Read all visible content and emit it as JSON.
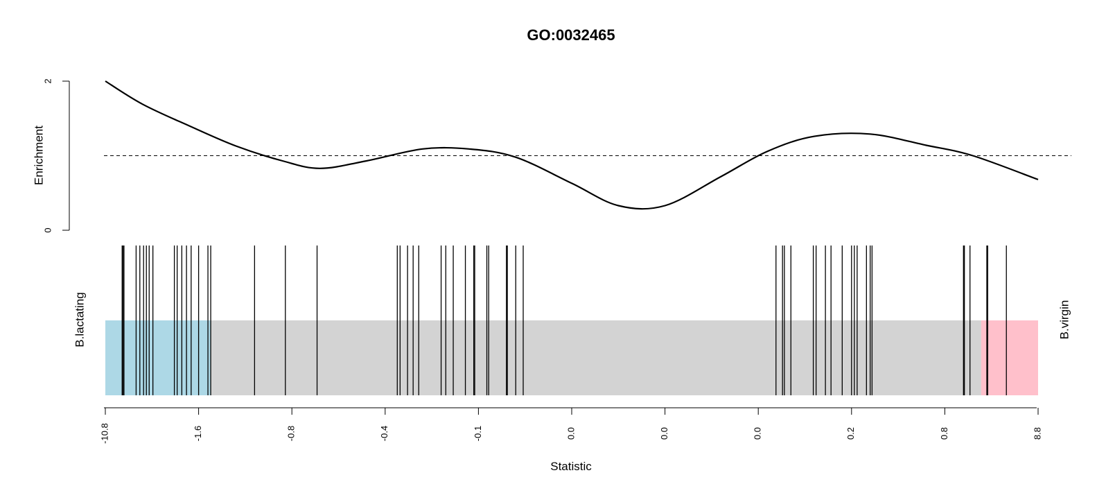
{
  "chart_data": {
    "type": "line",
    "title": "GO:0032465",
    "enrichment_panel": {
      "ylabel": "Enrichment",
      "ylim": [
        0,
        2
      ],
      "yticks": [
        "0",
        "2"
      ],
      "reference_line": 1.0,
      "curve": [
        {
          "rank": 0.0,
          "enrichment": 2.0
        },
        {
          "rank": 0.04,
          "enrichment": 1.69
        },
        {
          "rank": 0.09,
          "enrichment": 1.4
        },
        {
          "rank": 0.14,
          "enrichment": 1.13
        },
        {
          "rank": 0.19,
          "enrichment": 0.93
        },
        {
          "rank": 0.23,
          "enrichment": 0.83
        },
        {
          "rank": 0.28,
          "enrichment": 0.93
        },
        {
          "rank": 0.34,
          "enrichment": 1.09
        },
        {
          "rank": 0.39,
          "enrichment": 1.09
        },
        {
          "rank": 0.44,
          "enrichment": 0.98
        },
        {
          "rank": 0.5,
          "enrichment": 0.63
        },
        {
          "rank": 0.55,
          "enrichment": 0.33
        },
        {
          "rank": 0.6,
          "enrichment": 0.33
        },
        {
          "rank": 0.66,
          "enrichment": 0.72
        },
        {
          "rank": 0.71,
          "enrichment": 1.06
        },
        {
          "rank": 0.76,
          "enrichment": 1.26
        },
        {
          "rank": 0.82,
          "enrichment": 1.29
        },
        {
          "rank": 0.88,
          "enrichment": 1.14
        },
        {
          "rank": 0.93,
          "enrichment": 1.0
        },
        {
          "rank": 1.0,
          "enrichment": 0.68
        }
      ]
    },
    "barcode_panel": {
      "left_label": "B.lactating",
      "right_label": "B.virgin",
      "regions": [
        {
          "name": "B.lactating",
          "from": 0.0,
          "to": 0.113,
          "color": "#add8e6"
        },
        {
          "name": "neutral",
          "from": 0.113,
          "to": 0.939,
          "color": "#d3d3d3"
        },
        {
          "name": "B.virgin",
          "from": 0.939,
          "to": 1.0,
          "color": "#ffc0cb"
        }
      ],
      "gene_ranks": [
        0.018,
        0.019,
        0.02,
        0.033,
        0.037,
        0.041,
        0.044,
        0.047,
        0.051,
        0.074,
        0.077,
        0.082,
        0.087,
        0.092,
        0.1,
        0.11,
        0.113,
        0.16,
        0.193,
        0.227,
        0.313,
        0.316,
        0.324,
        0.33,
        0.336,
        0.36,
        0.365,
        0.373,
        0.386,
        0.395,
        0.396,
        0.409,
        0.411,
        0.43,
        0.431,
        0.44,
        0.448,
        0.719,
        0.726,
        0.728,
        0.735,
        0.759,
        0.762,
        0.772,
        0.778,
        0.79,
        0.8,
        0.803,
        0.806,
        0.816,
        0.82,
        0.822,
        0.92,
        0.921,
        0.927,
        0.945,
        0.946,
        0.966
      ]
    },
    "x_axis": {
      "xlabel": "Statistic",
      "tick_labels": [
        "-10.8",
        "-1.6",
        "-0.8",
        "-0.4",
        "-0.1",
        "0.0",
        "0.0",
        "0.0",
        "0.2",
        "0.8",
        "8.8"
      ]
    }
  }
}
